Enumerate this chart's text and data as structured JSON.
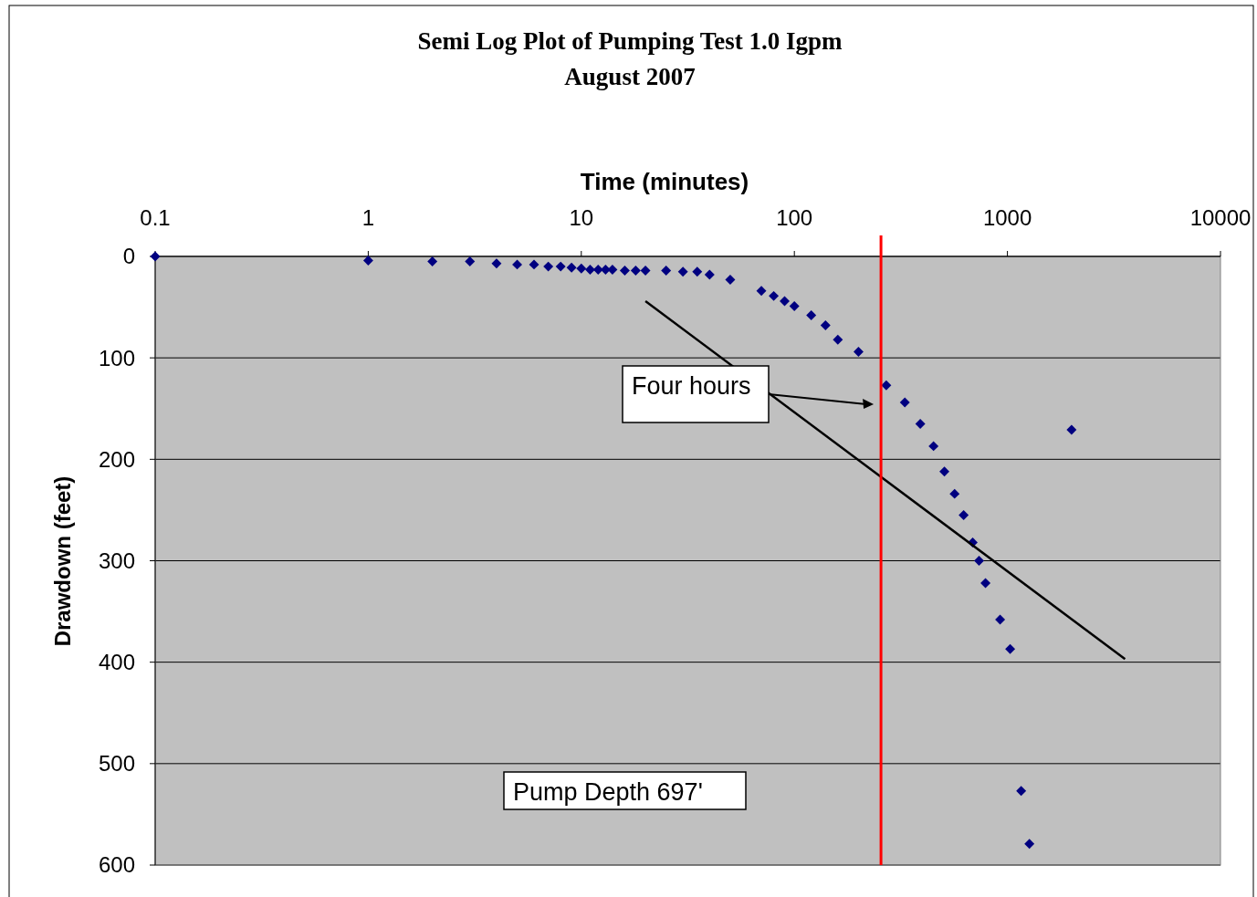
{
  "chart_data": {
    "type": "scatter",
    "title": "Semi Log Plot of Pumping Test  1.0 Igpm",
    "subtitle": "August 2007",
    "xlabel": "Time (minutes)",
    "ylabel": "Drawdown (feet)",
    "log": "x",
    "xlim": [
      0.1,
      10000
    ],
    "xticks": [
      0.1,
      1,
      10,
      100,
      1000,
      10000
    ],
    "ylim": [
      600,
      0
    ],
    "yticks": [
      0,
      100,
      200,
      300,
      400,
      500,
      600
    ],
    "grid": "y",
    "marker": "diamond",
    "series": [
      {
        "color": "#000080",
        "x": [
          0.1,
          1,
          2,
          3,
          4,
          5,
          6,
          7,
          8,
          9,
          10,
          11,
          12,
          13,
          14,
          16,
          18,
          20,
          25,
          30,
          35,
          40,
          50,
          70,
          80,
          90,
          100,
          120,
          140,
          160,
          200,
          270,
          330,
          390,
          450,
          506,
          565,
          623,
          687,
          736,
          789,
          924,
          1030,
          1160,
          1268,
          2000
        ],
        "values": [
          0,
          4,
          5,
          5,
          7,
          8,
          8,
          10,
          10,
          11,
          12,
          13,
          13,
          13,
          13,
          14,
          14,
          14,
          14,
          15,
          15,
          18,
          23,
          34,
          39,
          44,
          49,
          58,
          68,
          82,
          94,
          127,
          144,
          165,
          187,
          212,
          234,
          255,
          282,
          300,
          322,
          358,
          387,
          527,
          579,
          171
        ]
      },
      {
        "type": "line",
        "color": "#000000",
        "marker": "none",
        "x": [
          20,
          3565
        ],
        "values": [
          44,
          397
        ]
      }
    ],
    "ref_lines": [
      {
        "axis": "x",
        "value": 255,
        "color": "#ff0000"
      }
    ],
    "annotations": [
      "Four hours",
      "Pump Depth 697'"
    ]
  }
}
